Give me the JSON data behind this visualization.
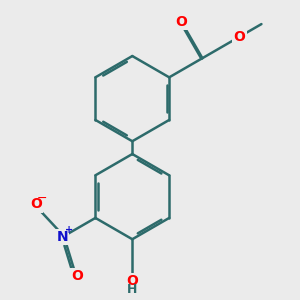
{
  "background_color": "#ebebeb",
  "bond_color": "#2d6b6b",
  "bond_width": 1.8,
  "dbo": 0.055,
  "atom_colors": {
    "O": "#ff0000",
    "N": "#1010cc",
    "C": "#2d6b6b",
    "H": "#2d6b6b"
  },
  "figsize": [
    3.0,
    3.0
  ],
  "dpi": 100
}
